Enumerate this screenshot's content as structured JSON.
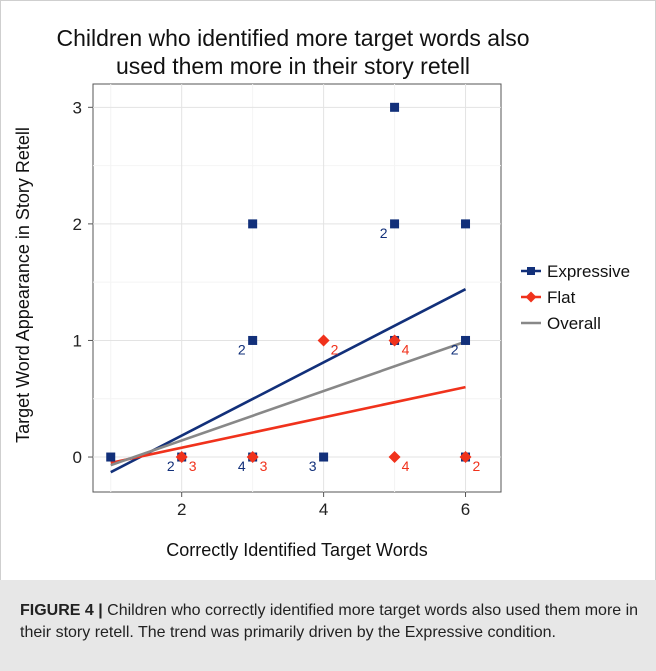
{
  "figure": {
    "caption_label": "FIGURE 4 |",
    "caption_text": " Children who correctly identified more target words also used them more in their story retell. The trend was primarily driven by the Expressive condition."
  },
  "chart_data": {
    "type": "scatter",
    "title_lines": [
      "Children who identified more target words also",
      "used them more in their story retell"
    ],
    "xlabel": "Correctly Identified Target Words",
    "ylabel": "Target Word Appearance in Story Retell",
    "xlim": [
      0.75,
      6.5
    ],
    "ylim": [
      -0.3,
      3.2
    ],
    "xticks": [
      2,
      4,
      6
    ],
    "yticks": [
      0,
      1,
      2,
      3
    ],
    "grid": true,
    "legend_position": "right",
    "colors": {
      "expressive": "#12307a",
      "flat": "#f0321c",
      "overall": "#888888"
    },
    "series": [
      {
        "name": "Expressive",
        "marker": "square",
        "color": "#12307a",
        "points": [
          {
            "x": 1,
            "y": 0,
            "count": ""
          },
          {
            "x": 2,
            "y": 0,
            "count": "2"
          },
          {
            "x": 3,
            "y": 0,
            "count": "4"
          },
          {
            "x": 3,
            "y": 1,
            "count": "2"
          },
          {
            "x": 3,
            "y": 2,
            "count": ""
          },
          {
            "x": 4,
            "y": 0,
            "count": "3"
          },
          {
            "x": 5,
            "y": 1,
            "count": ""
          },
          {
            "x": 5,
            "y": 2,
            "count": "2"
          },
          {
            "x": 5,
            "y": 3,
            "count": ""
          },
          {
            "x": 6,
            "y": 0,
            "count": ""
          },
          {
            "x": 6,
            "y": 1,
            "count": "2"
          },
          {
            "x": 6,
            "y": 2,
            "count": ""
          }
        ],
        "trend": {
          "x": [
            1,
            6
          ],
          "y": [
            -0.13,
            1.44
          ]
        }
      },
      {
        "name": "Flat",
        "marker": "diamond",
        "color": "#f0321c",
        "points": [
          {
            "x": 2,
            "y": 0,
            "count": "3"
          },
          {
            "x": 3,
            "y": 0,
            "count": "3"
          },
          {
            "x": 4,
            "y": 1,
            "count": "2"
          },
          {
            "x": 5,
            "y": 1,
            "count": "4"
          },
          {
            "x": 5,
            "y": 0,
            "count": "4"
          },
          {
            "x": 6,
            "y": 0,
            "count": "2"
          }
        ],
        "trend": {
          "x": [
            1,
            6
          ],
          "y": [
            -0.05,
            0.6
          ]
        }
      },
      {
        "name": "Overall",
        "marker": "none",
        "color": "#888888",
        "points": [],
        "trend": {
          "x": [
            1,
            6
          ],
          "y": [
            -0.07,
            0.99
          ]
        }
      }
    ]
  }
}
